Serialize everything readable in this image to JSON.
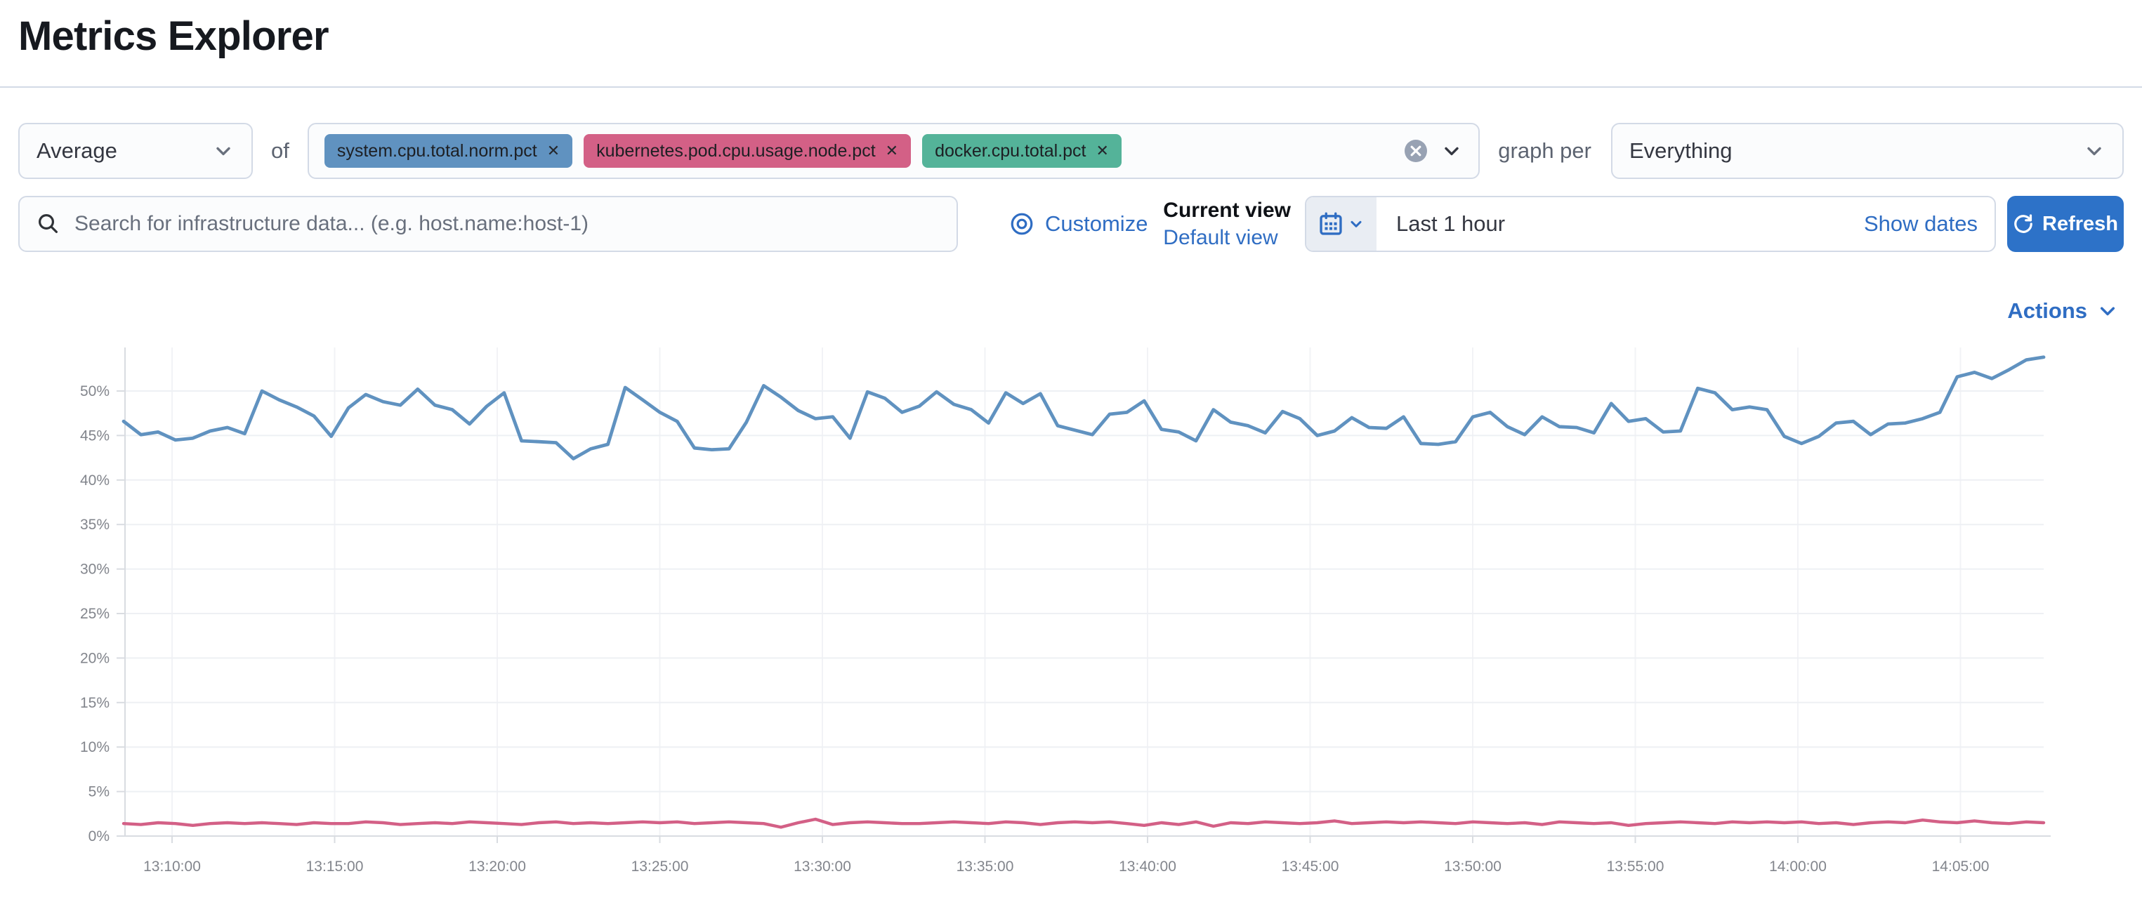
{
  "page": {
    "title": "Metrics Explorer"
  },
  "toolbar": {
    "aggregation": {
      "value": "Average"
    },
    "of_label": "of",
    "metrics": [
      {
        "label": "system.cpu.total.norm.pct",
        "color": "#6092C0"
      },
      {
        "label": "kubernetes.pod.cpu.usage.node.pct",
        "color": "#D36086"
      },
      {
        "label": "docker.cpu.total.pct",
        "color": "#54B399"
      }
    ],
    "remove_glyph": "✕",
    "graph_per_label": "graph per",
    "group_by": {
      "value": "Everything"
    }
  },
  "search": {
    "placeholder": "Search for infrastructure data... (e.g. host.name:host-1)"
  },
  "view_controls": {
    "customize_label": "Customize",
    "current_view_label": "Current view",
    "view_name": "Default view"
  },
  "datepicker": {
    "value": "Last 1 hour",
    "show_dates_label": "Show dates"
  },
  "refresh": {
    "label": "Refresh"
  },
  "actions": {
    "label": "Actions"
  },
  "chart_data": {
    "type": "line",
    "title": "",
    "xlabel": "",
    "ylabel": "",
    "x_start": "13:08:30",
    "x_end": "14:07:30",
    "x_ticks": [
      "13:10:00",
      "13:15:00",
      "13:20:00",
      "13:25:00",
      "13:30:00",
      "13:35:00",
      "13:40:00",
      "13:45:00",
      "13:50:00",
      "13:55:00",
      "14:00:00",
      "14:05:00"
    ],
    "y_ticks": [
      "0%",
      "5%",
      "10%",
      "15%",
      "20%",
      "25%",
      "30%",
      "35%",
      "40%",
      "45%",
      "50%"
    ],
    "ylim": [
      0,
      55
    ],
    "y_tick_step_pct": 5,
    "grid": true,
    "legend": "none",
    "series": [
      {
        "name": "system.cpu.total.norm.pct",
        "color": "#6092C0",
        "unit": "%",
        "values": [
          46.6,
          45.1,
          45.4,
          44.5,
          44.7,
          45.5,
          45.9,
          45.2,
          50.0,
          49.0,
          48.2,
          47.2,
          44.9,
          48.1,
          49.6,
          48.8,
          48.4,
          50.2,
          48.4,
          47.9,
          46.3,
          48.3,
          49.8,
          44.4,
          44.3,
          44.2,
          42.4,
          43.5,
          44.0,
          50.4,
          49.0,
          47.6,
          46.6,
          43.6,
          43.4,
          43.5,
          46.5,
          50.6,
          49.3,
          47.8,
          46.9,
          47.1,
          44.7,
          49.9,
          49.2,
          47.6,
          48.3,
          49.9,
          48.5,
          47.9,
          46.4,
          49.8,
          48.6,
          49.7,
          46.1,
          45.6,
          45.1,
          47.4,
          47.6,
          48.9,
          45.7,
          45.4,
          44.4,
          47.9,
          46.5,
          46.1,
          45.3,
          47.7,
          46.9,
          45.0,
          45.5,
          47.0,
          45.9,
          45.8,
          47.1,
          44.1,
          44.0,
          44.3,
          47.1,
          47.6,
          46.0,
          45.1,
          47.1,
          46.0,
          45.9,
          45.3,
          48.6,
          46.6,
          46.9,
          45.4,
          45.5,
          50.3,
          49.8,
          47.9,
          48.2,
          47.9,
          44.9,
          44.1,
          44.9,
          46.4,
          46.6,
          45.1,
          46.3,
          46.4,
          46.9,
          47.6,
          51.6,
          52.1,
          51.4,
          52.4,
          53.5,
          53.8
        ]
      },
      {
        "name": "kubernetes.pod.cpu.usage.node.pct",
        "color": "#D36086",
        "unit": "%",
        "values": [
          1.4,
          1.3,
          1.5,
          1.4,
          1.2,
          1.4,
          1.5,
          1.4,
          1.5,
          1.4,
          1.3,
          1.5,
          1.4,
          1.4,
          1.6,
          1.5,
          1.3,
          1.4,
          1.5,
          1.4,
          1.6,
          1.5,
          1.4,
          1.3,
          1.5,
          1.6,
          1.4,
          1.5,
          1.4,
          1.5,
          1.6,
          1.5,
          1.6,
          1.4,
          1.5,
          1.6,
          1.5,
          1.4,
          1.0,
          1.5,
          1.9,
          1.3,
          1.5,
          1.6,
          1.5,
          1.4,
          1.4,
          1.5,
          1.6,
          1.5,
          1.4,
          1.6,
          1.5,
          1.3,
          1.5,
          1.6,
          1.5,
          1.6,
          1.4,
          1.2,
          1.5,
          1.3,
          1.6,
          1.1,
          1.5,
          1.4,
          1.6,
          1.5,
          1.4,
          1.5,
          1.7,
          1.4,
          1.5,
          1.6,
          1.5,
          1.6,
          1.5,
          1.4,
          1.6,
          1.5,
          1.4,
          1.5,
          1.3,
          1.6,
          1.5,
          1.4,
          1.5,
          1.2,
          1.4,
          1.5,
          1.6,
          1.5,
          1.4,
          1.6,
          1.5,
          1.6,
          1.5,
          1.6,
          1.4,
          1.5,
          1.3,
          1.5,
          1.6,
          1.5,
          1.8,
          1.6,
          1.5,
          1.7,
          1.5,
          1.4,
          1.6,
          1.5
        ]
      }
    ]
  }
}
